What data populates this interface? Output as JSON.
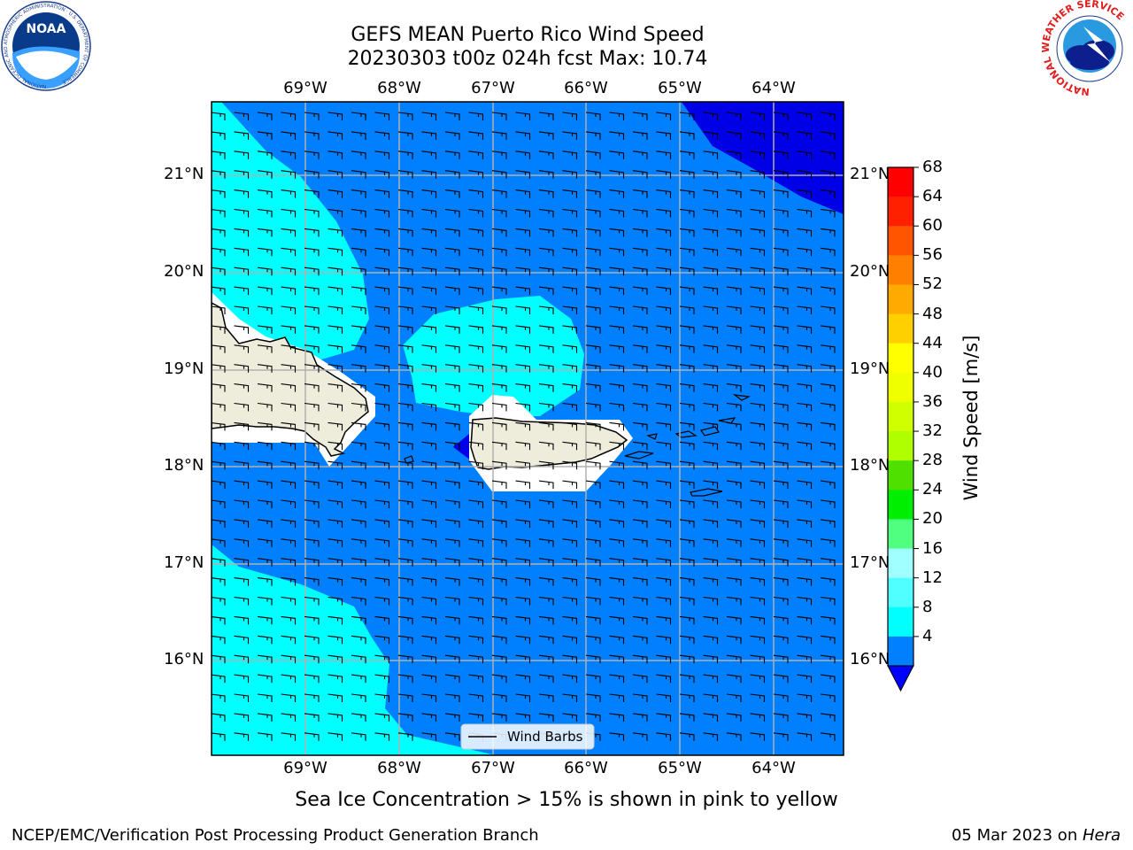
{
  "title": {
    "line1": "GEFS MEAN Puerto Rico Wind Speed",
    "line2": "20230303 t00z 024h fcst   Max: 10.74"
  },
  "map": {
    "longitudes": [
      "69°W",
      "68°W",
      "67°W",
      "66°W",
      "65°W",
      "64°W"
    ],
    "latitudes": [
      "21°N",
      "20°N",
      "19°N",
      "18°N",
      "17°N",
      "16°N"
    ],
    "legend_label": "Wind Barbs",
    "land_color": "#eeecdb",
    "contour_colors": {
      "level_4_8": "#0080ff",
      "level_8_12": "#00ffff",
      "below_4": "#0000e6"
    }
  },
  "colorbar": {
    "label": "Wind Speed [m/s]",
    "ticks": [
      "68",
      "64",
      "60",
      "56",
      "52",
      "48",
      "44",
      "40",
      "36",
      "32",
      "28",
      "24",
      "20",
      "16",
      "12",
      "8",
      "4"
    ],
    "colors": [
      "#ff0000",
      "#ff2000",
      "#ff5500",
      "#ff8000",
      "#ffaa00",
      "#ffd000",
      "#ffff00",
      "#f0ff00",
      "#d0ff00",
      "#b0ff00",
      "#50e000",
      "#00ee00",
      "#50ff80",
      "#a0ffff",
      "#50ffff",
      "#00ffff",
      "#0080ff"
    ],
    "under_color": "#0000ff"
  },
  "note": "Sea Ice Concentration > 15% is shown in pink to yellow",
  "footer": {
    "left": "NCEP/EMC/Verification Post Processing Product Generation Branch",
    "date": "05 Mar 2023 on ",
    "machine": "Hera"
  },
  "logos": {
    "noaa_text": "NOAA",
    "noaa_ring_text": "NATIONAL OCEANIC AND ATMOSPHERIC ADMINISTRATION · U.S. DEPARTMENT OF COMMERCE",
    "nws_ring_text": "NATIONAL WEATHER SERVICE"
  }
}
